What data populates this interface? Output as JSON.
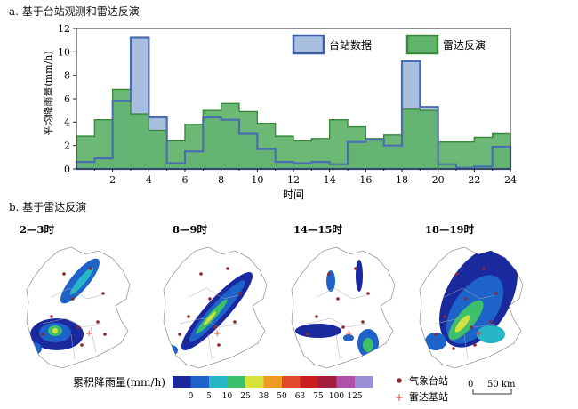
{
  "section_a_title": "a. 基于台站观测和雷达反演",
  "section_b_title": "b. 基于雷达反演",
  "chart_data": {
    "type": "bar",
    "title": "a. 基于台站观测和雷达反演",
    "xlabel": "时间",
    "ylabel": "平均降雨量(mm/h)",
    "xlim": [
      0,
      24
    ],
    "ylim": [
      0,
      12
    ],
    "xticks": [
      "2",
      "4",
      "6",
      "8",
      "10",
      "12",
      "14",
      "16",
      "18",
      "20",
      "22",
      "24"
    ],
    "yticks": [
      "0",
      "2",
      "4",
      "6",
      "8",
      "10",
      "12"
    ],
    "x": [
      "0-1",
      "1-2",
      "2-3",
      "3-4",
      "4-5",
      "5-6",
      "6-7",
      "7-8",
      "8-9",
      "9-10",
      "10-11",
      "11-12",
      "12-13",
      "13-14",
      "14-15",
      "15-16",
      "16-17",
      "17-18",
      "18-19",
      "19-20",
      "20-21",
      "21-22",
      "22-23",
      "23-24"
    ],
    "legend_position": "top-right",
    "series": [
      {
        "name": "台站数据",
        "color": "#4a6fb0",
        "fill": "#a9bfe0",
        "values": [
          0.6,
          0.9,
          5.8,
          11.2,
          4.4,
          0.5,
          1.5,
          4.4,
          4.2,
          3.0,
          1.7,
          0.6,
          0.5,
          0.6,
          0.4,
          2.3,
          2.5,
          2.0,
          9.2,
          5.3,
          0.4,
          0.1,
          0.2,
          1.9
        ]
      },
      {
        "name": "雷达反演",
        "color": "#3a8a3e",
        "fill": "#5fb36a",
        "values": [
          2.8,
          4.2,
          6.8,
          4.7,
          3.3,
          2.4,
          3.8,
          5.0,
          5.6,
          4.9,
          3.9,
          2.8,
          2.4,
          2.6,
          4.2,
          3.6,
          2.6,
          2.9,
          5.1,
          5.0,
          2.3,
          2.3,
          2.7,
          3.0
        ]
      }
    ]
  },
  "maps": [
    {
      "title": "2—3时"
    },
    {
      "title": "8—9时"
    },
    {
      "title": "14—15时"
    },
    {
      "title": "18—19时"
    }
  ],
  "colorbar": {
    "label": "累积降雨量(mm/h)",
    "ticks": [
      "0",
      "5",
      "10",
      "25",
      "38",
      "50",
      "63",
      "75",
      "100",
      "125"
    ],
    "colors": [
      "#1a2a9e",
      "#1d63c9",
      "#27b6c6",
      "#3cc06a",
      "#d7e23a",
      "#f09a24",
      "#e04a2a",
      "#c81e1e",
      "#a51e3e",
      "#b04fa8",
      "#9b8fd6"
    ]
  },
  "map_legend": {
    "station_label": "气象台站",
    "station_color": "#8b2a2a",
    "radar_label": "雷达基站",
    "radar_color": "#d9362a",
    "scale_start": "0",
    "scale_end": "50 km"
  }
}
